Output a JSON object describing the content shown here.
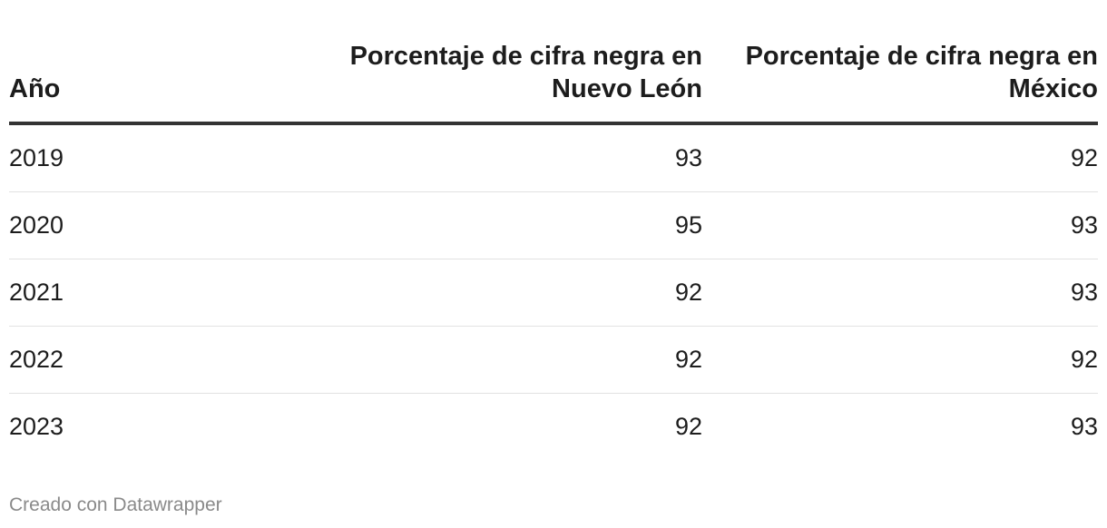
{
  "chart_data": {
    "type": "table",
    "columns": [
      "Año",
      "Porcentaje de cifra negra en Nuevo León",
      "Porcentaje de cifra negra en México"
    ],
    "rows": [
      [
        "2019",
        "93",
        "92"
      ],
      [
        "2020",
        "95",
        "93"
      ],
      [
        "2021",
        "92",
        "93"
      ],
      [
        "2022",
        "92",
        "92"
      ],
      [
        "2023",
        "92",
        "93"
      ]
    ]
  },
  "footer": {
    "credit": "Creado con Datawrapper"
  }
}
